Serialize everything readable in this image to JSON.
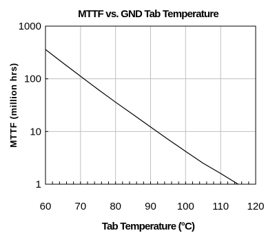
{
  "chart_data": {
    "type": "line",
    "title": "MTTF vs. GND Tab Temperature",
    "xlabel": "Tab Temperature (°C)",
    "ylabel": "MTTF (million hrs)",
    "xlim": [
      60,
      120
    ],
    "ylim": [
      1,
      1000
    ],
    "yscale": "log",
    "grid": true,
    "x_ticks": [
      60,
      70,
      80,
      90,
      100,
      110,
      120
    ],
    "y_ticks": [
      1,
      10,
      100,
      1000
    ],
    "x_tick_labels": [
      "60",
      "70",
      "80",
      "90",
      "100",
      "110",
      "120"
    ],
    "y_tick_labels": [
      "1",
      "10",
      "100",
      "1000"
    ],
    "series": [
      {
        "x": [
          60,
          65,
          70,
          75,
          80,
          85,
          90,
          95,
          100,
          105,
          110,
          115
        ],
        "y": [
          360,
          200,
          112,
          63,
          36,
          21,
          12.2,
          7.1,
          4.2,
          2.5,
          1.6,
          1.0
        ]
      }
    ],
    "colors": {
      "line": "#000000",
      "grid": "#bfbfbf",
      "background": "#ffffff"
    }
  }
}
